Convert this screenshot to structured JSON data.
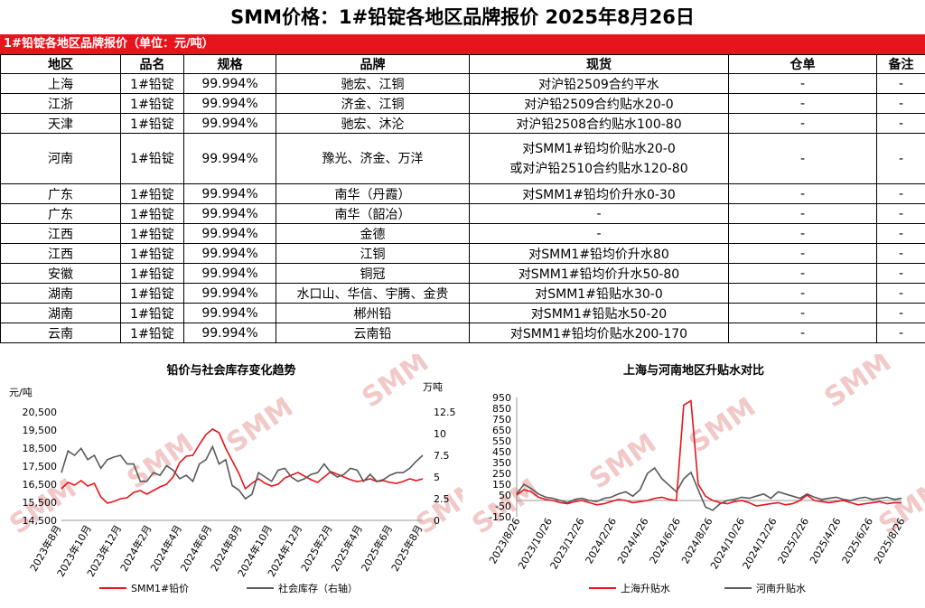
{
  "page_title": "SMM价格：1#铅锭各地区品牌报价 2025年8月26日",
  "section_title": "1#铅锭各地区品牌报价（单位：元/吨）",
  "columns": [
    "地区",
    "品名",
    "规格",
    "品牌",
    "现货",
    "仓单",
    "备注"
  ],
  "rows": [
    {
      "region": "上海",
      "product": "1#铅锭",
      "spec": "99.994%",
      "brand": "驰宏、江铜",
      "spot": "对沪铅2509合约平水",
      "spot2": "",
      "warrant": "-",
      "note": "-"
    },
    {
      "region": "江浙",
      "product": "1#铅锭",
      "spec": "99.994%",
      "brand": "济金、江铜",
      "spot": "对沪铅2509合约贴水20-0",
      "spot2": "",
      "warrant": "-",
      "note": "-"
    },
    {
      "region": "天津",
      "product": "1#铅锭",
      "spec": "99.994%",
      "brand": "驰宏、沐沦",
      "spot": "对沪铅2508合约贴水100-80",
      "spot2": "",
      "warrant": "-",
      "note": "-"
    },
    {
      "region": "河南",
      "product": "1#铅锭",
      "spec": "99.994%",
      "brand": "豫光、济金、万洋",
      "spot": "对SMM1#铅均价贴水20-0",
      "spot2": "或对沪铅2510合约贴水120-80",
      "warrant": "-",
      "note": "-"
    },
    {
      "region": "广东",
      "product": "1#铅锭",
      "spec": "99.994%",
      "brand": "南华（丹霞）",
      "spot": "对SMM1#铅均价升水0-30",
      "spot2": "",
      "warrant": "-",
      "note": "-"
    },
    {
      "region": "广东",
      "product": "1#铅锭",
      "spec": "99.994%",
      "brand": "南华（韶冶）",
      "spot": "-",
      "spot2": "",
      "warrant": "-",
      "note": "-"
    },
    {
      "region": "江西",
      "product": "1#铅锭",
      "spec": "99.994%",
      "brand": "金德",
      "spot": "-",
      "spot2": "",
      "warrant": "-",
      "note": "-"
    },
    {
      "region": "江西",
      "product": "1#铅锭",
      "spec": "99.994%",
      "brand": "江铜",
      "spot": "对SMM1#铅均价升水80",
      "spot2": "",
      "warrant": "-",
      "note": "-"
    },
    {
      "region": "安徽",
      "product": "1#铅锭",
      "spec": "99.994%",
      "brand": "铜冠",
      "spot": "对SMM1#铅均价升水50-80",
      "spot2": "",
      "warrant": "-",
      "note": "-"
    },
    {
      "region": "湖南",
      "product": "1#铅锭",
      "spec": "99.994%",
      "brand": "水口山、华信、宇腾、金贵",
      "spot": "对SMM1#铅贴水30-0",
      "spot2": "",
      "warrant": "-",
      "note": "-"
    },
    {
      "region": "湖南",
      "product": "1#铅锭",
      "spec": "99.994%",
      "brand": "郴州铅",
      "spot": "对SMM1#铅贴水50-20",
      "spot2": "",
      "warrant": "-",
      "note": "-"
    },
    {
      "region": "云南",
      "product": "1#铅锭",
      "spec": "99.994%",
      "brand": "云南铅",
      "spot": "对SMM1#铅均价贴水200-170",
      "spot2": "",
      "warrant": "-",
      "note": "-"
    }
  ],
  "watermark": "SMM",
  "colors": {
    "red": "#e8141b",
    "gray": "#595959"
  },
  "chart_data": [
    {
      "type": "line",
      "title": "铅价与社会库存变化趋势",
      "ylabel": "元/吨",
      "y2label": "万吨",
      "ylim": [
        14500,
        20500
      ],
      "y2lim": [
        0,
        12.5
      ],
      "yticks": [
        "20,500",
        "19,500",
        "18,500",
        "17,500",
        "16,500",
        "15,500",
        "14,500"
      ],
      "y2ticks": [
        "12.5",
        "10",
        "7.5",
        "5",
        "2.5",
        "0"
      ],
      "xticks": [
        "2023年8月",
        "2023年10月",
        "2023年12月",
        "2024年2月",
        "2024年4月",
        "2024年6月",
        "2024年8月",
        "2024年10月",
        "2024年12月",
        "2025年2月",
        "2025年4月",
        "2025年6月",
        "2025年8月"
      ],
      "series": [
        {
          "name": "SMM1#铅价",
          "axis": "left",
          "color": "#e8141b",
          "values": [
            16250,
            16600,
            16450,
            16700,
            16400,
            16550,
            15800,
            15450,
            15550,
            15700,
            15750,
            16050,
            16150,
            15950,
            16150,
            16350,
            16500,
            16900,
            17700,
            18050,
            18100,
            18700,
            19250,
            19550,
            19350,
            18500,
            17800,
            17100,
            16250,
            16550,
            16800,
            16550,
            16400,
            16500,
            16850,
            17000,
            17150,
            16950,
            16750,
            16600,
            16900,
            17200,
            17050,
            16900,
            16750,
            16650,
            16700,
            16800,
            16650,
            16700,
            16600,
            16550,
            16650,
            16800,
            16700,
            16800
          ]
        },
        {
          "name": "社会库存（右轴）",
          "axis": "right",
          "color": "#595959",
          "values": [
            5.5,
            8.0,
            7.5,
            8.3,
            7.0,
            7.5,
            6.0,
            7.0,
            7.3,
            7.5,
            6.5,
            6.5,
            4.5,
            4.5,
            5.5,
            5.2,
            6.3,
            5.8,
            4.8,
            5.2,
            4.5,
            6.5,
            7.0,
            8.5,
            6.5,
            7.0,
            4.0,
            3.5,
            2.5,
            3.0,
            5.5,
            5.0,
            4.5,
            5.8,
            6.0,
            5.0,
            4.5,
            4.8,
            5.3,
            5.5,
            6.5,
            5.5,
            5.0,
            5.3,
            6.0,
            5.8,
            4.5,
            5.3,
            4.5,
            4.7,
            5.2,
            5.5,
            5.5,
            6.0,
            6.8,
            7.5
          ]
        }
      ]
    },
    {
      "type": "line",
      "title": "上海与河南地区升贴水对比",
      "ylim": [
        -150,
        950
      ],
      "yticks": [
        "950",
        "850",
        "750",
        "650",
        "550",
        "450",
        "350",
        "250",
        "150",
        "50",
        "-50",
        "-150"
      ],
      "xticks": [
        "2023/8/26",
        "2023/10/26",
        "2023/12/26",
        "2024/2/26",
        "2024/4/26",
        "2024/6/26",
        "2024/8/26",
        "2024/10/26",
        "2024/12/26",
        "2025/2/26",
        "2025/4/26",
        "2025/6/26",
        "2025/8/26"
      ],
      "series": [
        {
          "name": "上海升贴水",
          "color": "#e8141b",
          "values": [
            50,
            100,
            80,
            30,
            10,
            0,
            -20,
            -30,
            -10,
            0,
            -20,
            -40,
            -30,
            -10,
            10,
            0,
            -20,
            -10,
            0,
            20,
            30,
            10,
            0,
            880,
            920,
            150,
            40,
            0,
            -20,
            -30,
            -10,
            0,
            -20,
            -50,
            -40,
            -30,
            -20,
            -40,
            -30,
            0,
            50,
            0,
            -10,
            -20,
            -10,
            0,
            -20,
            -40,
            -30,
            -20,
            -10,
            -30,
            -20,
            -20
          ]
        },
        {
          "name": "河南升贴水",
          "color": "#595959",
          "values": [
            60,
            150,
            110,
            60,
            30,
            20,
            0,
            -20,
            10,
            20,
            0,
            -10,
            20,
            30,
            60,
            80,
            40,
            100,
            250,
            300,
            200,
            140,
            80,
            200,
            260,
            100,
            -60,
            -90,
            -30,
            0,
            10,
            30,
            20,
            40,
            60,
            20,
            80,
            60,
            40,
            20,
            60,
            30,
            10,
            20,
            30,
            10,
            0,
            20,
            30,
            10,
            20,
            30,
            10,
            20
          ]
        }
      ]
    }
  ]
}
